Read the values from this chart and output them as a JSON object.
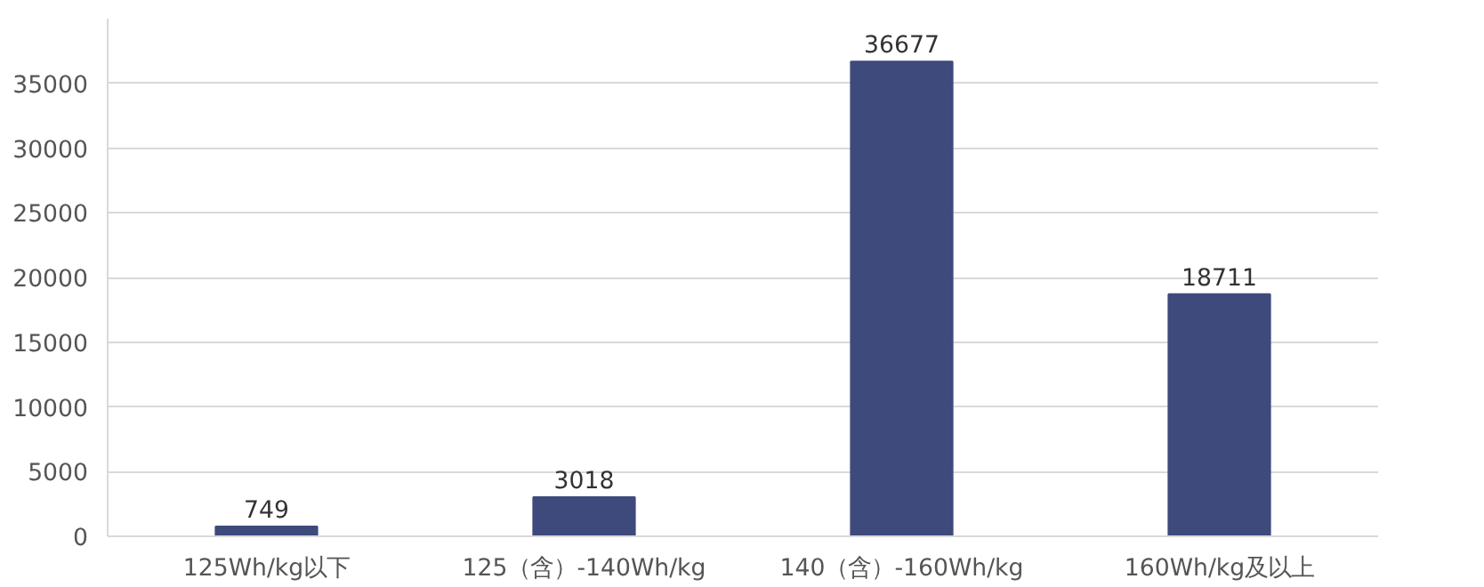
{
  "chart_data": {
    "type": "bar",
    "categories": [
      "125Wh/kg以下",
      "125（含）-140Wh/kg",
      "140（含）-160Wh/kg",
      "160Wh/kg及以上"
    ],
    "values": [
      749,
      3018,
      36677,
      18711
    ],
    "color": "#3f4a7c",
    "data_labels": true,
    "ylim": [
      0,
      40000
    ],
    "yticks": [
      0,
      5000,
      10000,
      15000,
      20000,
      25000,
      30000,
      35000
    ],
    "grid": "y"
  }
}
